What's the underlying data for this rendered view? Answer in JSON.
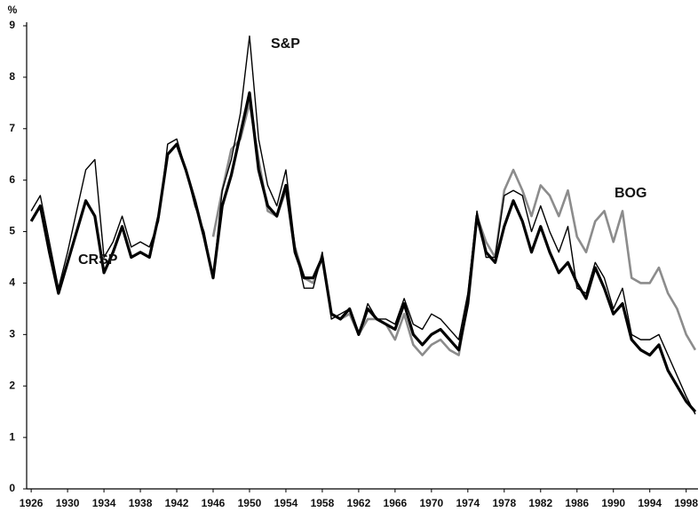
{
  "chart_data": {
    "type": "line",
    "y_label": "%",
    "x": [
      1926,
      1927,
      1928,
      1929,
      1930,
      1931,
      1932,
      1933,
      1934,
      1935,
      1936,
      1937,
      1938,
      1939,
      1940,
      1941,
      1942,
      1943,
      1944,
      1945,
      1946,
      1947,
      1948,
      1949,
      1950,
      1951,
      1952,
      1953,
      1954,
      1955,
      1956,
      1957,
      1958,
      1959,
      1960,
      1961,
      1962,
      1963,
      1964,
      1965,
      1966,
      1967,
      1968,
      1969,
      1970,
      1971,
      1972,
      1973,
      1974,
      1975,
      1976,
      1977,
      1978,
      1979,
      1980,
      1981,
      1982,
      1983,
      1984,
      1985,
      1986,
      1987,
      1988,
      1989,
      1990,
      1991,
      1992,
      1993,
      1994,
      1995,
      1996,
      1997,
      1998,
      1999
    ],
    "series": [
      {
        "name": "CRSP",
        "color": "#000000",
        "values": [
          5.2,
          5.5,
          4.6,
          3.8,
          4.4,
          5.0,
          5.6,
          5.3,
          4.2,
          4.6,
          5.1,
          4.5,
          4.6,
          4.5,
          5.3,
          6.5,
          6.7,
          6.2,
          5.6,
          4.9,
          4.1,
          5.5,
          6.1,
          6.9,
          7.7,
          6.2,
          5.5,
          5.3,
          5.9,
          4.6,
          4.1,
          4.1,
          4.5,
          3.4,
          3.3,
          3.5,
          3.0,
          3.5,
          3.3,
          3.2,
          3.1,
          3.6,
          3.0,
          2.8,
          3.0,
          3.1,
          2.9,
          2.7,
          3.6,
          5.3,
          4.6,
          4.4,
          5.1,
          5.6,
          5.2,
          4.6,
          5.1,
          4.6,
          4.2,
          4.4,
          4.0,
          3.7,
          4.3,
          3.9,
          3.4,
          3.6,
          2.9,
          2.7,
          2.6,
          2.8,
          2.3,
          2.0,
          1.7,
          1.5
        ]
      },
      {
        "name": "S&P",
        "color": "#000000",
        "values": [
          5.4,
          5.7,
          4.8,
          3.9,
          4.6,
          5.4,
          6.2,
          6.4,
          4.5,
          4.8,
          5.3,
          4.7,
          4.8,
          4.7,
          5.2,
          6.7,
          6.8,
          6.2,
          5.5,
          5.0,
          4.1,
          5.8,
          6.4,
          7.3,
          8.8,
          6.8,
          5.9,
          5.5,
          6.2,
          4.7,
          3.9,
          3.9,
          4.6,
          3.3,
          3.4,
          3.5,
          3.0,
          3.6,
          3.3,
          3.3,
          3.2,
          3.7,
          3.2,
          3.1,
          3.4,
          3.3,
          3.1,
          2.9,
          3.8,
          5.4,
          4.5,
          4.5,
          5.7,
          5.8,
          5.7,
          5.0,
          5.5,
          5.0,
          4.6,
          5.1,
          3.9,
          3.8,
          4.4,
          4.1,
          3.5,
          3.9,
          3.0,
          2.9,
          2.9,
          3.0,
          2.6,
          2.2,
          1.8,
          1.45
        ]
      },
      {
        "name": "BOG",
        "color": "#8c8c8c",
        "values": [
          null,
          null,
          null,
          null,
          null,
          null,
          null,
          null,
          null,
          null,
          null,
          null,
          null,
          null,
          null,
          null,
          null,
          null,
          null,
          null,
          4.9,
          5.8,
          6.6,
          6.8,
          7.5,
          6.4,
          5.4,
          5.3,
          5.8,
          4.7,
          4.1,
          4.0,
          4.5,
          3.4,
          3.3,
          3.4,
          3.0,
          3.3,
          3.3,
          3.2,
          2.9,
          3.4,
          2.8,
          2.6,
          2.8,
          2.9,
          2.7,
          2.6,
          3.7,
          5.3,
          4.8,
          4.5,
          5.8,
          6.2,
          5.8,
          5.3,
          5.9,
          5.7,
          5.3,
          5.8,
          4.9,
          4.6,
          5.2,
          5.4,
          4.8,
          5.4,
          4.1,
          4.0,
          4.0,
          4.3,
          3.8,
          3.5,
          3.0,
          2.7
        ]
      }
    ],
    "xlim": [
      1925.5,
      1999.3
    ],
    "xticks": [
      1926,
      1930,
      1934,
      1938,
      1942,
      1946,
      1950,
      1954,
      1958,
      1962,
      1966,
      1970,
      1974,
      1978,
      1982,
      1986,
      1990,
      1994,
      1998
    ],
    "ylim": [
      0,
      9
    ],
    "yticks": [
      0,
      1,
      2,
      3,
      4,
      5,
      6,
      7,
      8,
      9
    ],
    "grid": false
  }
}
